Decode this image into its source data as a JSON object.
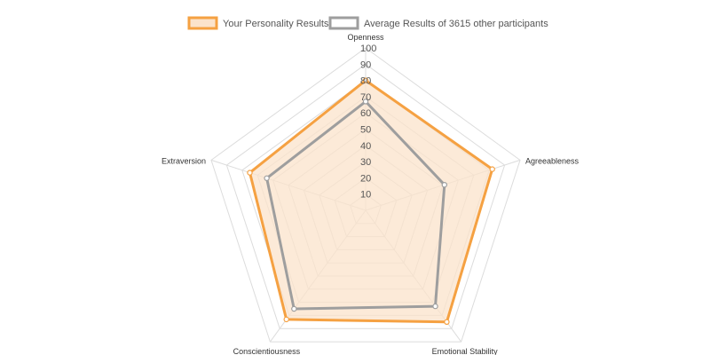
{
  "chart_data": {
    "type": "radar",
    "axes": [
      "Openness",
      "Agreeableness",
      "Emotional Stability",
      "Conscientiousness",
      "Extraversion"
    ],
    "r_ticks": [
      "10",
      "20",
      "30",
      "40",
      "50",
      "60",
      "70",
      "80",
      "90",
      "100"
    ],
    "rlim": [
      0,
      100
    ],
    "grid": true,
    "legend_position": "top-center",
    "series": [
      {
        "name": "Your Personality Results",
        "values": [
          80,
          82,
          85,
          83,
          75
        ],
        "color": "#f5a142",
        "fill": "#fbe3cb"
      },
      {
        "name": "Average Results of 3615 other participants",
        "values": [
          67,
          51,
          73,
          75,
          64
        ],
        "color": "#9e9e9e"
      }
    ]
  }
}
